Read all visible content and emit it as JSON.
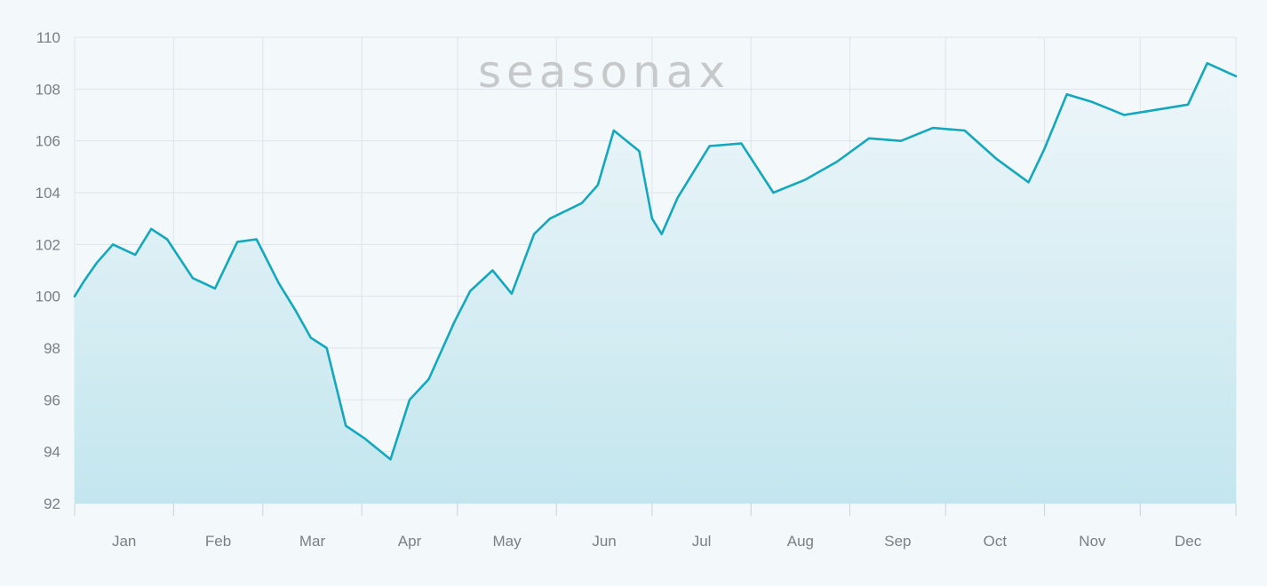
{
  "watermark": "seasonax",
  "chart_data": {
    "type": "area",
    "title": "",
    "xlabel": "",
    "ylabel": "",
    "ylim": [
      92,
      110
    ],
    "y_ticks": [
      92,
      94,
      96,
      98,
      100,
      102,
      104,
      106,
      108,
      110
    ],
    "x_tick_labels": [
      "Jan",
      "Feb",
      "Mar",
      "Apr",
      "May",
      "Jun",
      "Jul",
      "Aug",
      "Sep",
      "Oct",
      "Nov",
      "Dec"
    ],
    "grid": true,
    "legend": "none",
    "colors": {
      "line": "#13a8bd",
      "fill_top": "#eef6fa",
      "fill_bottom": "#c3e6ee",
      "grid": "#dde4ea",
      "background": "#f3f8fb"
    },
    "series": [
      {
        "x": [
          1,
          4,
          8,
          13,
          20,
          25,
          30,
          38,
          45,
          52,
          58,
          65,
          70,
          75,
          80,
          86,
          92,
          100,
          106,
          112,
          120,
          125,
          132,
          138,
          145,
          150,
          160,
          165,
          170,
          178,
          182,
          185,
          190,
          200,
          210,
          220,
          230,
          240,
          250,
          260,
          270,
          280,
          290,
          300,
          305,
          312,
          320,
          330,
          340,
          350,
          356,
          365
        ],
        "y": [
          100.0,
          100.6,
          101.3,
          102.0,
          101.6,
          102.6,
          102.2,
          100.7,
          100.3,
          102.1,
          102.2,
          100.5,
          99.5,
          98.4,
          98.0,
          95.0,
          94.5,
          93.7,
          96.0,
          96.8,
          99.0,
          100.2,
          101.0,
          100.1,
          102.4,
          103.0,
          103.6,
          104.3,
          106.4,
          105.6,
          103.0,
          102.4,
          103.8,
          105.8,
          105.9,
          104.0,
          104.5,
          105.2,
          106.1,
          106.0,
          106.5,
          106.4,
          105.3,
          104.4,
          105.7,
          107.8,
          107.5,
          107.0,
          107.2,
          107.4,
          109.0,
          108.5
        ]
      }
    ]
  }
}
